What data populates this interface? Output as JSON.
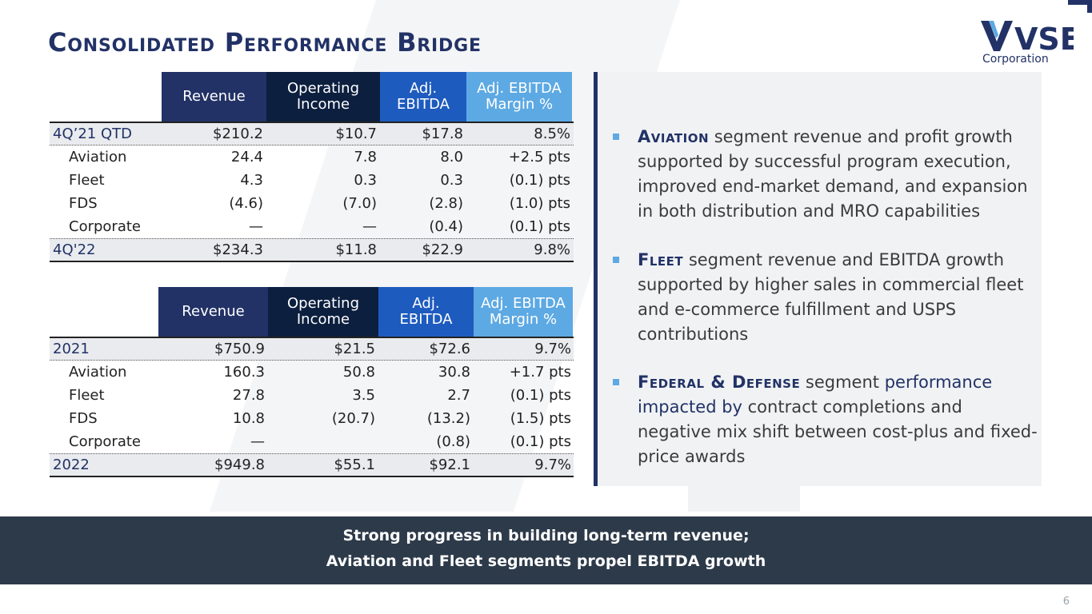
{
  "title": "Consolidated Performance Bridge",
  "logo": {
    "brand": "VSE",
    "sub": "Corporation"
  },
  "colors": {
    "navy": "#223266",
    "dark_navy": "#0c1f3f",
    "blue": "#1e5bbf",
    "light_blue": "#5da9e3",
    "footer": "#2d3a4a"
  },
  "table_headers": [
    "Revenue",
    "Operating\nIncome",
    "Adj.\nEBITDA",
    "Adj. EBITDA\nMargin %"
  ],
  "quarter_bridge": {
    "start": {
      "label": "4Q’21 QTD",
      "rev": "$210.2",
      "op": "$10.7",
      "ebitda": "$17.8",
      "margin": "8.5%"
    },
    "segments": [
      {
        "label": "Aviation",
        "rev": "24.4",
        "op": "7.8",
        "ebitda": "8.0",
        "margin": "+2.5 pts"
      },
      {
        "label": "Fleet",
        "rev": "4.3",
        "op": "0.3",
        "ebitda": "0.3",
        "margin": "(0.1) pts"
      },
      {
        "label": "FDS",
        "rev": "(4.6)",
        "op": "(7.0)",
        "ebitda": "(2.8)",
        "margin": "(1.0) pts"
      },
      {
        "label": "Corporate",
        "rev": "—",
        "op": "—",
        "ebitda": "(0.4)",
        "margin": "(0.1) pts"
      }
    ],
    "end": {
      "label": "4Q'22",
      "rev": "$234.3",
      "op": "$11.8",
      "ebitda": "$22.9",
      "margin": "9.8%"
    }
  },
  "year_bridge": {
    "start": {
      "label": "2021",
      "rev": "$750.9",
      "op": "$21.5",
      "ebitda": "$72.6",
      "margin": "9.7%"
    },
    "segments": [
      {
        "label": "Aviation",
        "rev": "160.3",
        "op": "50.8",
        "ebitda": "30.8",
        "margin": "+1.7 pts"
      },
      {
        "label": "Fleet",
        "rev": "27.8",
        "op": "3.5",
        "ebitda": "2.7",
        "margin": "(0.1) pts"
      },
      {
        "label": "FDS",
        "rev": "10.8",
        "op": "(20.7)",
        "ebitda": "(13.2)",
        "margin": "(1.5) pts"
      },
      {
        "label": "Corporate",
        "rev": "—",
        "op": "",
        "ebitda": "(0.8)",
        "margin": "(0.1) pts"
      }
    ],
    "end": {
      "label": "2022",
      "rev": "$949.8",
      "op": "$55.1",
      "ebitda": "$92.1",
      "margin": "9.7%"
    }
  },
  "commentary": [
    {
      "keyword": "Aviation",
      "text": " segment revenue and profit growth supported by successful program execution, improved end-market demand, and expansion in both distribution and MRO capabilities"
    },
    {
      "keyword": "Fleet",
      "text": " segment revenue and EBITDA growth supported by higher sales in commercial fleet and e-commerce fulfillment and USPS contributions"
    },
    {
      "keyword": "Federal & Defense",
      "text_a": " segment ",
      "emph": "performance impacted by",
      "text_b": " contract completions and negative mix shift  between cost-plus and fixed-price awards"
    }
  ],
  "footer": {
    "line1": "Strong progress in building long-term revenue;",
    "line2": "Aviation and Fleet segments propel EBITDA growth"
  },
  "page_number": "6"
}
